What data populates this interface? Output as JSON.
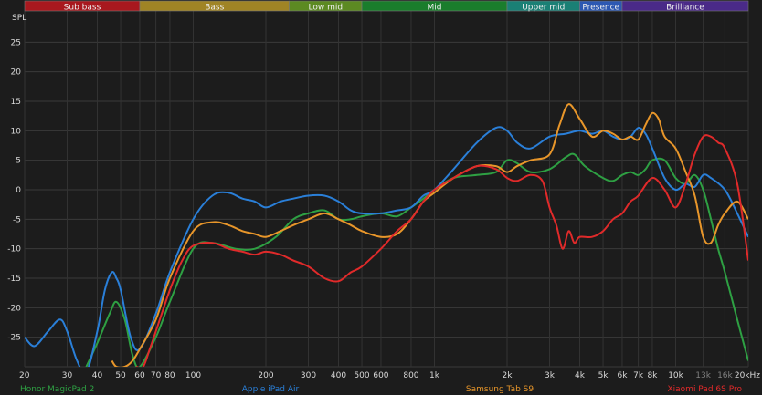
{
  "chart_data": {
    "type": "line",
    "ylabel": "SPL",
    "xscale": "log",
    "xlim": [
      20,
      20000
    ],
    "ylim": [
      -30,
      30
    ],
    "grid": true,
    "bands": [
      {
        "name": "Sub bass",
        "from": 20,
        "to": 60,
        "color": "#a8181e"
      },
      {
        "name": "Bass",
        "from": 60,
        "to": 250,
        "color": "#a08425"
      },
      {
        "name": "Low mid",
        "from": 250,
        "to": 500,
        "color": "#5c8a22"
      },
      {
        "name": "Mid",
        "from": 500,
        "to": 2000,
        "color": "#1a7d2c"
      },
      {
        "name": "Upper mid",
        "from": 2000,
        "to": 4000,
        "color": "#1a8075"
      },
      {
        "name": "Presence",
        "from": 4000,
        "to": 6000,
        "color": "#2c58b2"
      },
      {
        "name": "Brilliance",
        "from": 6000,
        "to": 20000,
        "color": "#4a2a88"
      }
    ],
    "x_ticks": [
      {
        "v": 20,
        "label": "20"
      },
      {
        "v": 30,
        "label": "30"
      },
      {
        "v": 40,
        "label": "40"
      },
      {
        "v": 50,
        "label": "50"
      },
      {
        "v": 60,
        "label": "60"
      },
      {
        "v": 70,
        "label": "70"
      },
      {
        "v": 80,
        "label": "80"
      },
      {
        "v": 100,
        "label": "100"
      },
      {
        "v": 200,
        "label": "200"
      },
      {
        "v": 300,
        "label": "300"
      },
      {
        "v": 400,
        "label": "400"
      },
      {
        "v": 500,
        "label": "500"
      },
      {
        "v": 600,
        "label": "600"
      },
      {
        "v": 800,
        "label": "800"
      },
      {
        "v": 1000,
        "label": "1k"
      },
      {
        "v": 2000,
        "label": "2k"
      },
      {
        "v": 3000,
        "label": "3k"
      },
      {
        "v": 4000,
        "label": "4k"
      },
      {
        "v": 5000,
        "label": "5k"
      },
      {
        "v": 6000,
        "label": "6k"
      },
      {
        "v": 7000,
        "label": "7k"
      },
      {
        "v": 8000,
        "label": "8k"
      },
      {
        "v": 10000,
        "label": "10k"
      },
      {
        "v": 13000,
        "label": "13k",
        "dim": true
      },
      {
        "v": 16000,
        "label": "16k",
        "dim": true
      },
      {
        "v": 20000,
        "label": "20kHz"
      }
    ],
    "y_ticks": [
      25,
      20,
      15,
      10,
      5,
      0,
      -5,
      -10,
      -15,
      -20,
      -25
    ],
    "series": [
      {
        "name": "Honor MagicPad 2",
        "color": "#2ea043",
        "x": [
          36,
          40,
          45,
          48,
          52,
          56,
          60,
          70,
          80,
          100,
          120,
          150,
          180,
          220,
          260,
          300,
          350,
          400,
          450,
          500,
          600,
          700,
          800,
          900,
          1000,
          1200,
          1500,
          1800,
          2000,
          2200,
          2500,
          3000,
          3500,
          3800,
          4200,
          5000,
          5500,
          6000,
          6500,
          7000,
          7500,
          8000,
          9000,
          10000,
          11000,
          12000,
          13000,
          14000,
          15000,
          16000,
          18000,
          20000
        ],
        "y": [
          -30,
          -26,
          -21,
          -19,
          -22,
          -28,
          -30,
          -25,
          -19,
          -10,
          -9,
          -10,
          -10,
          -8,
          -5,
          -4,
          -3.5,
          -5,
          -5,
          -4.5,
          -4,
          -4.5,
          -3,
          -1.5,
          0,
          2,
          2.5,
          3,
          5,
          4.5,
          3,
          3.5,
          5.5,
          6,
          4,
          2,
          1.5,
          2.5,
          3,
          2.5,
          3.5,
          5,
          5,
          2,
          1,
          2.5,
          0,
          -5,
          -10,
          -14,
          -22,
          -29
        ]
      },
      {
        "name": "Apple iPad Air",
        "color": "#2a7fd8",
        "x": [
          20,
          22,
          25,
          28,
          30,
          33,
          36,
          40,
          43,
          46,
          48,
          50,
          55,
          60,
          70,
          80,
          100,
          120,
          140,
          160,
          180,
          200,
          230,
          260,
          300,
          350,
          400,
          450,
          500,
          600,
          700,
          800,
          900,
          1000,
          1200,
          1500,
          1800,
          2000,
          2200,
          2500,
          3000,
          3500,
          4000,
          4500,
          5000,
          5500,
          6000,
          6500,
          7000,
          7500,
          8000,
          9000,
          10000,
          11000,
          12000,
          13000,
          14000,
          16000,
          18000,
          20000
        ],
        "y": [
          -25,
          -26.5,
          -24,
          -22,
          -24,
          -29,
          -31,
          -24,
          -17,
          -14,
          -15,
          -17,
          -25,
          -27,
          -21,
          -14,
          -5,
          -1,
          -0.5,
          -1.5,
          -2,
          -3,
          -2,
          -1.5,
          -1,
          -1,
          -2,
          -3.5,
          -4,
          -4,
          -3.5,
          -3,
          -1,
          0,
          3.5,
          8,
          10.5,
          10,
          8,
          7,
          9,
          9.5,
          10,
          9.5,
          10,
          9,
          8.5,
          9,
          10.5,
          9.5,
          7,
          2,
          0,
          1,
          0.5,
          2.5,
          2,
          0,
          -4,
          -8
        ]
      },
      {
        "name": "Samsung Tab S9",
        "color": "#e8962a",
        "x": [
          46,
          48,
          52,
          56,
          60,
          70,
          80,
          100,
          120,
          140,
          160,
          180,
          200,
          230,
          260,
          300,
          350,
          400,
          450,
          500,
          600,
          700,
          800,
          900,
          1000,
          1200,
          1500,
          1800,
          2000,
          2200,
          2500,
          3000,
          3300,
          3600,
          4000,
          4500,
          5000,
          5500,
          6000,
          6500,
          7000,
          7500,
          8000,
          8500,
          9000,
          10000,
          11000,
          12000,
          13000,
          14000,
          15000,
          16000,
          18000,
          20000
        ],
        "y": [
          -29,
          -30,
          -30,
          -29,
          -27,
          -22,
          -15,
          -7,
          -5.5,
          -6,
          -7,
          -7.5,
          -8,
          -7,
          -6,
          -5,
          -4,
          -5,
          -6,
          -7,
          -8,
          -7.5,
          -5,
          -2,
          -0.5,
          2,
          4,
          4,
          3,
          4,
          5,
          6,
          11,
          14.5,
          12,
          9,
          10,
          9.5,
          8.5,
          9,
          8.5,
          11,
          13,
          12,
          9,
          7,
          3,
          -1,
          -8,
          -9,
          -6,
          -4,
          -2,
          -5
        ]
      },
      {
        "name": "Xiaomi Pad 6S Pro",
        "color": "#e02a2a",
        "x": [
          58,
          62,
          66,
          70,
          80,
          90,
          100,
          120,
          140,
          160,
          180,
          200,
          230,
          260,
          300,
          350,
          400,
          450,
          500,
          600,
          700,
          800,
          900,
          1000,
          1200,
          1500,
          1800,
          2000,
          2200,
          2500,
          2800,
          3000,
          3200,
          3400,
          3600,
          3800,
          4000,
          4500,
          5000,
          5500,
          6000,
          6500,
          7000,
          8000,
          9000,
          10000,
          11000,
          12000,
          13000,
          14000,
          15000,
          16000,
          18000,
          20000
        ],
        "y": [
          -30,
          -30,
          -27,
          -24,
          -17,
          -12,
          -9.5,
          -9,
          -10,
          -10.5,
          -11,
          -10.5,
          -11,
          -12,
          -13,
          -15,
          -15.5,
          -14,
          -13,
          -10,
          -7,
          -5,
          -2,
          0,
          2,
          4,
          3.5,
          2,
          1.5,
          2.5,
          1.5,
          -3,
          -6,
          -10,
          -7,
          -9,
          -8,
          -8,
          -7,
          -5,
          -4,
          -2,
          -1,
          2,
          0,
          -3,
          1,
          6,
          9,
          9,
          8,
          7,
          1,
          -12
        ]
      }
    ]
  }
}
